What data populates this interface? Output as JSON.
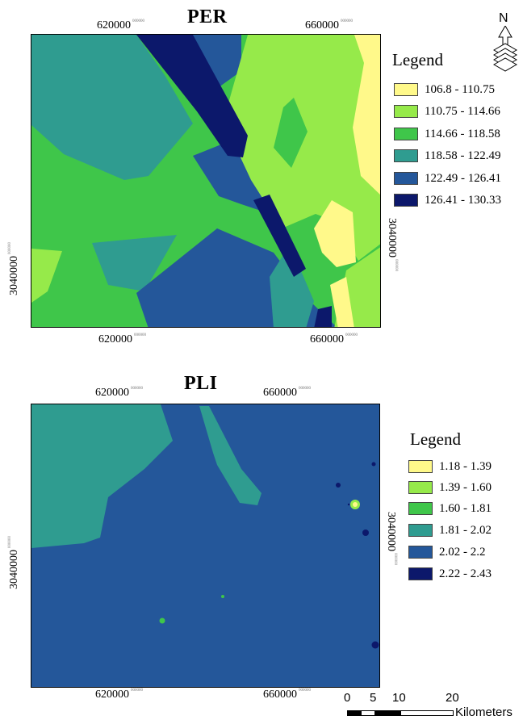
{
  "north_arrow": {
    "label": "N"
  },
  "maps": [
    {
      "id": "per",
      "title": "PER",
      "x_ticks": [
        "620000",
        "660000"
      ],
      "y_tick": "3040000",
      "tick_suffix": "000000",
      "legend_title": "Legend",
      "legend": [
        {
          "label": "106.8 - 110.75",
          "color": "#fff98a"
        },
        {
          "label": "110.75 - 114.66",
          "color": "#96ea4a"
        },
        {
          "label": "114.66 - 118.58",
          "color": "#3fc64a"
        },
        {
          "label": "118.58 - 122.49",
          "color": "#2f9c90"
        },
        {
          "label": "122.49 - 126.41",
          "color": "#24579a"
        },
        {
          "label": "126.41 - 130.33",
          "color": "#0c186b"
        }
      ]
    },
    {
      "id": "pli",
      "title": "PLI",
      "x_ticks": [
        "620000",
        "660000"
      ],
      "y_tick": "3040000",
      "tick_suffix": "000000",
      "legend_title": "Legend",
      "legend": [
        {
          "label": "1.18 - 1.39",
          "color": "#fff98a"
        },
        {
          "label": "1.39 - 1.60",
          "color": "#96ea4a"
        },
        {
          "label": "1.60 - 1.81",
          "color": "#3fc64a"
        },
        {
          "label": "1.81 - 2.02",
          "color": "#2f9c90"
        },
        {
          "label": "2.02 - 2.2",
          "color": "#24579a"
        },
        {
          "label": "2.22 - 2.43",
          "color": "#0c186b"
        }
      ]
    }
  ],
  "scale_bar": {
    "ticks": [
      "0",
      "5",
      "10",
      "20"
    ],
    "unit": "Kilometers"
  }
}
